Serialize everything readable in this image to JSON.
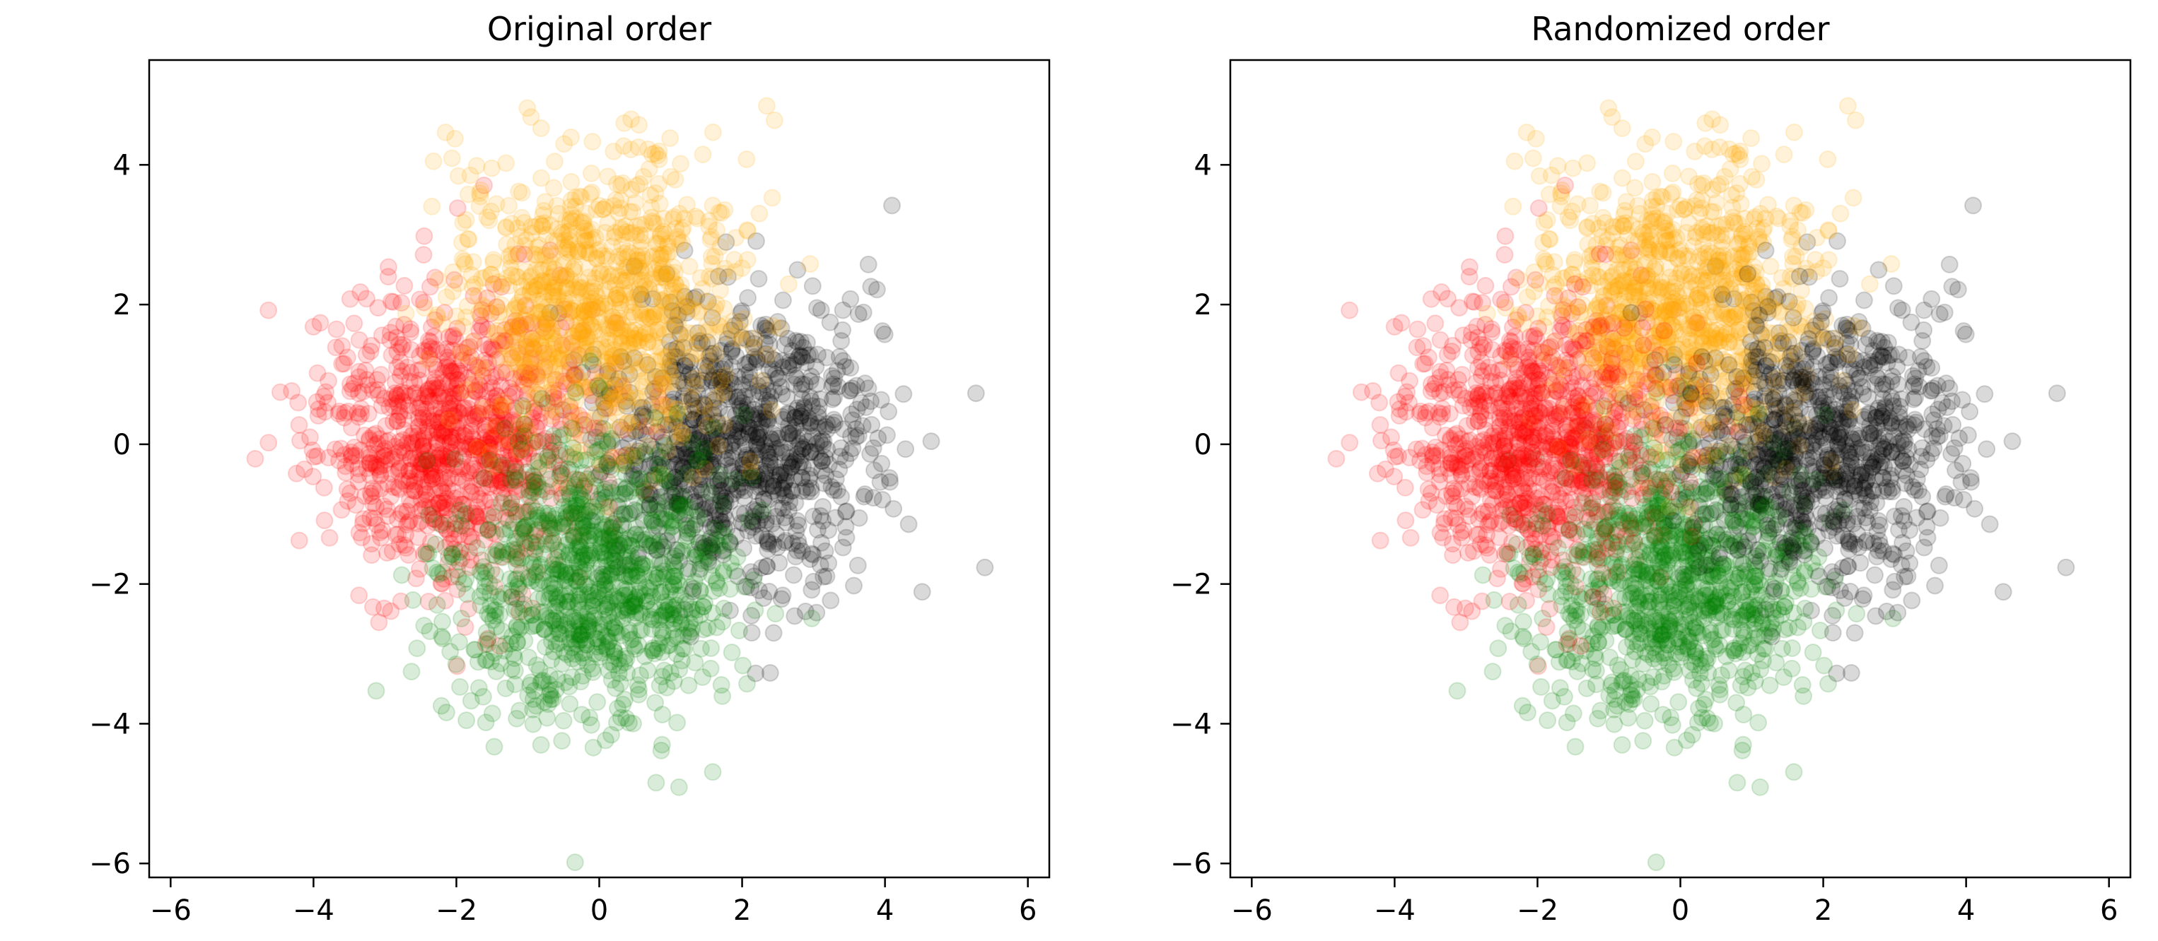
{
  "chart_data": [
    {
      "type": "scatter",
      "title": "Original order",
      "xlabel": "",
      "ylabel": "",
      "xlim": [
        -6.3,
        6.3
      ],
      "ylim": [
        -6.2,
        5.5
      ],
      "xticks": [
        -6,
        -4,
        -2,
        0,
        2,
        4,
        6
      ],
      "yticks": [
        -6,
        -4,
        -2,
        0,
        2,
        4
      ],
      "xtick_labels": [
        "−6",
        "−4",
        "−2",
        "0",
        "2",
        "4",
        "6"
      ],
      "ytick_labels": [
        "−6",
        "−4",
        "−2",
        "0",
        "2",
        "4"
      ],
      "grid": false,
      "legend": "none",
      "marker_alpha": 0.15,
      "draw_order": "sequential",
      "series": [
        {
          "color": "#000000",
          "center": [
            2,
            0
          ],
          "std": 1,
          "count": 1000
        },
        {
          "color": "#ff0000",
          "center": [
            -2,
            0
          ],
          "std": 1,
          "count": 1000
        },
        {
          "color": "#ffa500",
          "center": [
            0,
            2
          ],
          "std": 1,
          "count": 1000
        },
        {
          "color": "#008000",
          "center": [
            0,
            -2
          ],
          "std": 1,
          "count": 1000
        }
      ]
    },
    {
      "type": "scatter",
      "title": "Randomized order",
      "xlabel": "",
      "ylabel": "",
      "xlim": [
        -6.3,
        6.3
      ],
      "ylim": [
        -6.2,
        5.5
      ],
      "xticks": [
        -6,
        -4,
        -2,
        0,
        2,
        4,
        6
      ],
      "yticks": [
        -6,
        -4,
        -2,
        0,
        2,
        4
      ],
      "xtick_labels": [
        "−6",
        "−4",
        "−2",
        "0",
        "2",
        "4",
        "6"
      ],
      "ytick_labels": [
        "−6",
        "−4",
        "−2",
        "0",
        "2",
        "4"
      ],
      "grid": false,
      "legend": "none",
      "marker_alpha": 0.15,
      "draw_order": "randomized",
      "series": [
        {
          "color": "#000000",
          "center": [
            2,
            0
          ],
          "std": 1,
          "count": 1000
        },
        {
          "color": "#ff0000",
          "center": [
            -2,
            0
          ],
          "std": 1,
          "count": 1000
        },
        {
          "color": "#ffa500",
          "center": [
            0,
            2
          ],
          "std": 1,
          "count": 1000
        },
        {
          "color": "#008000",
          "center": [
            0,
            -2
          ],
          "std": 1,
          "count": 1000
        }
      ]
    }
  ]
}
